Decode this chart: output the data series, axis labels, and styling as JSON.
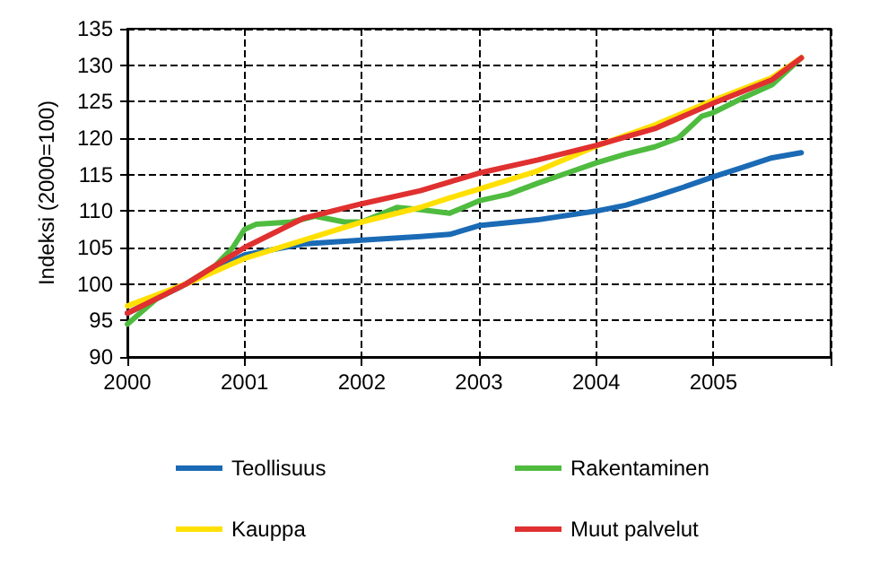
{
  "chart_data": {
    "type": "line",
    "ylabel": "Indeksi (2000=100)",
    "xlim": [
      2000,
      2006
    ],
    "xticks": [
      2000,
      2001,
      2002,
      2003,
      2004,
      2005,
      {
        "value": 2006,
        "label": null
      }
    ],
    "ylim": [
      90,
      135
    ],
    "yticks": [
      90,
      95,
      100,
      105,
      110,
      115,
      120,
      125,
      130,
      135
    ],
    "grid": true,
    "legend": "bottom",
    "marker": "none",
    "line_style": "solid",
    "series": [
      {
        "name": "Teollisuus",
        "color": "#1a6ab5",
        "x": [
          2000,
          2001,
          2001.5,
          2002,
          2002.5,
          2002.75,
          2003,
          2003.5,
          2004,
          2004.25,
          2004.5,
          2004.75,
          2005,
          2005.25,
          2005.5,
          2005.75
        ],
        "values": [
          96,
          104,
          105.5,
          106,
          106.5,
          106.8,
          108,
          108.8,
          110,
          110.8,
          112,
          113.3,
          114.7,
          116,
          117.3,
          118
        ]
      },
      {
        "name": "Rakentaminen",
        "color": "#4fbb3f",
        "x": [
          2000,
          2000.25,
          2000.5,
          2000.75,
          2000.9,
          2001,
          2001.1,
          2001.4,
          2001.6,
          2001.85,
          2002,
          2002.3,
          2002.5,
          2002.75,
          2003,
          2003.25,
          2003.5,
          2003.75,
          2004,
          2004.25,
          2004.5,
          2004.7,
          2004.9,
          2005,
          2005.25,
          2005.5,
          2005.75
        ],
        "values": [
          94.5,
          98,
          100,
          102.5,
          105,
          107.5,
          108.2,
          108.5,
          109.3,
          108.5,
          108.5,
          110.5,
          110.2,
          109.7,
          111.4,
          112.3,
          113.8,
          115.2,
          116.6,
          117.8,
          118.8,
          120,
          123,
          123.5,
          125.5,
          127.3,
          131
        ]
      },
      {
        "name": "Kauppa",
        "color": "#ffe000",
        "x": [
          2000,
          2000.5,
          2001,
          2001.5,
          2002,
          2002.5,
          2002.75,
          2003,
          2003.5,
          2004,
          2004.5,
          2005,
          2005.5,
          2005.75
        ],
        "values": [
          97,
          100,
          103.5,
          106,
          108.5,
          110.5,
          111.8,
          113,
          115.5,
          118.9,
          121.8,
          125.2,
          128.3,
          131
        ]
      },
      {
        "name": "Muut palvelut",
        "color": "#e03030",
        "x": [
          2000,
          2000.5,
          2001,
          2001.25,
          2001.5,
          2002,
          2002.5,
          2002.75,
          2003,
          2003.5,
          2004,
          2004.5,
          2005,
          2005.5,
          2005.75
        ],
        "values": [
          96,
          100,
          105,
          107,
          109,
          111,
          112.8,
          114,
          115.2,
          117,
          119,
          121.3,
          124.8,
          128,
          131
        ]
      }
    ]
  }
}
